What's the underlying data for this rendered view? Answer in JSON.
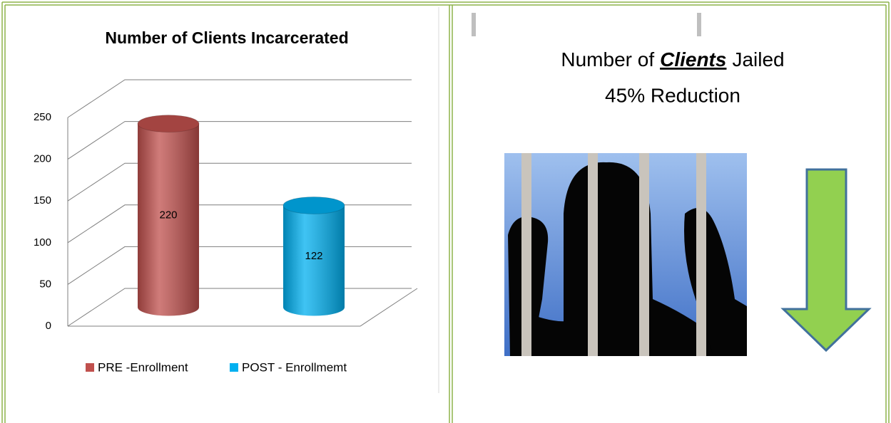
{
  "chart_data": {
    "type": "bar3d",
    "title": "Number of Clients Incarcerated",
    "categories": [
      null
    ],
    "series": [
      {
        "name": "PRE -Enrollment",
        "color": "#c0504d",
        "values": [
          220
        ]
      },
      {
        "name": "POST - Enrollmemt",
        "color": "#00b0f0",
        "values": [
          122
        ]
      }
    ],
    "ylim": [
      0,
      250
    ],
    "yticks": [
      0,
      50,
      100,
      150,
      200,
      250
    ],
    "grid": true,
    "legend": "bottom"
  },
  "panel": {
    "title_parts": [
      "Number of",
      "Clients",
      "Jailed"
    ],
    "subtitle": "45% Reduction"
  }
}
